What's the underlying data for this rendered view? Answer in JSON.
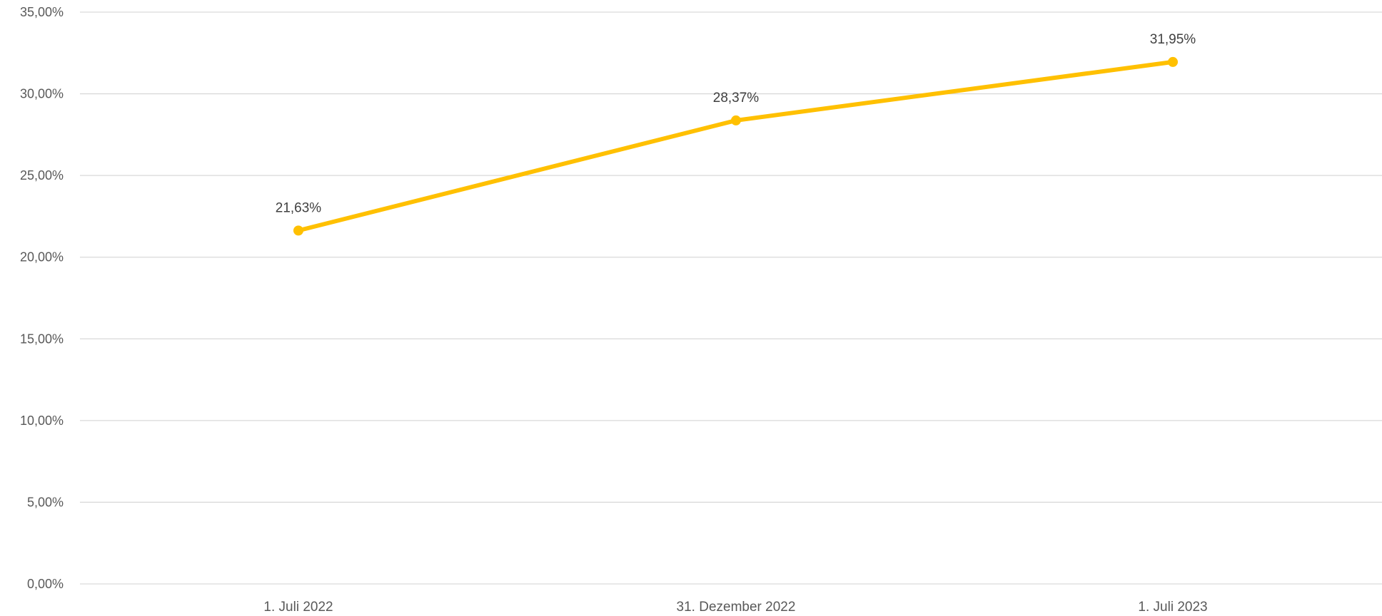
{
  "chart_data": {
    "type": "line",
    "categories": [
      "1. Juli 2022",
      "31. Dezember 2022",
      "1. Juli 2023"
    ],
    "series": [
      {
        "values": [
          21.63,
          28.37,
          31.95
        ],
        "data_labels": [
          "21,63%",
          "28,37%",
          "31,95%"
        ],
        "color": "#FFC000"
      }
    ],
    "ylim": [
      0,
      35
    ],
    "y_ticks": [
      {
        "value": 0,
        "label": "0,00%"
      },
      {
        "value": 5,
        "label": "5,00%"
      },
      {
        "value": 10,
        "label": "10,00%"
      },
      {
        "value": 15,
        "label": "15,00%"
      },
      {
        "value": 20,
        "label": "20,00%"
      },
      {
        "value": 25,
        "label": "25,00%"
      },
      {
        "value": 30,
        "label": "30,00%"
      },
      {
        "value": 35,
        "label": "35,00%"
      }
    ],
    "grid": true,
    "legend": "none"
  }
}
